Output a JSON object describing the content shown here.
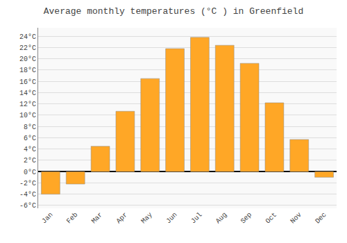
{
  "chart_data": {
    "type": "bar",
    "title": "Average monthly temperatures (°C ) in Greenfield",
    "categories": [
      "Jan",
      "Feb",
      "Mar",
      "Apr",
      "May",
      "Jun",
      "Jul",
      "Aug",
      "Sep",
      "Oct",
      "Nov",
      "Dec"
    ],
    "values": [
      -4.0,
      -2.2,
      4.5,
      10.7,
      16.5,
      21.8,
      23.8,
      22.4,
      19.2,
      12.2,
      5.7,
      -1.0
    ],
    "color": "#FFA726",
    "ylim": [
      -6.5,
      25.5
    ],
    "yticks": [
      {
        "value": -6,
        "label": "-6°C"
      },
      {
        "value": -4,
        "label": "-4°C"
      },
      {
        "value": -2,
        "label": "-2°C"
      },
      {
        "value": 0,
        "label": "0°C"
      },
      {
        "value": 2,
        "label": "2°C"
      },
      {
        "value": 4,
        "label": "4°C"
      },
      {
        "value": 6,
        "label": "6°C"
      },
      {
        "value": 8,
        "label": "8°C"
      },
      {
        "value": 10,
        "label": "10°C"
      },
      {
        "value": 12,
        "label": "12°C"
      },
      {
        "value": 14,
        "label": "14°C"
      },
      {
        "value": 16,
        "label": "16°C"
      },
      {
        "value": 18,
        "label": "18°C"
      },
      {
        "value": 20,
        "label": "20°C"
      },
      {
        "value": 22,
        "label": "22°C"
      },
      {
        "value": 24,
        "label": "24°C"
      }
    ],
    "grid": true
  }
}
